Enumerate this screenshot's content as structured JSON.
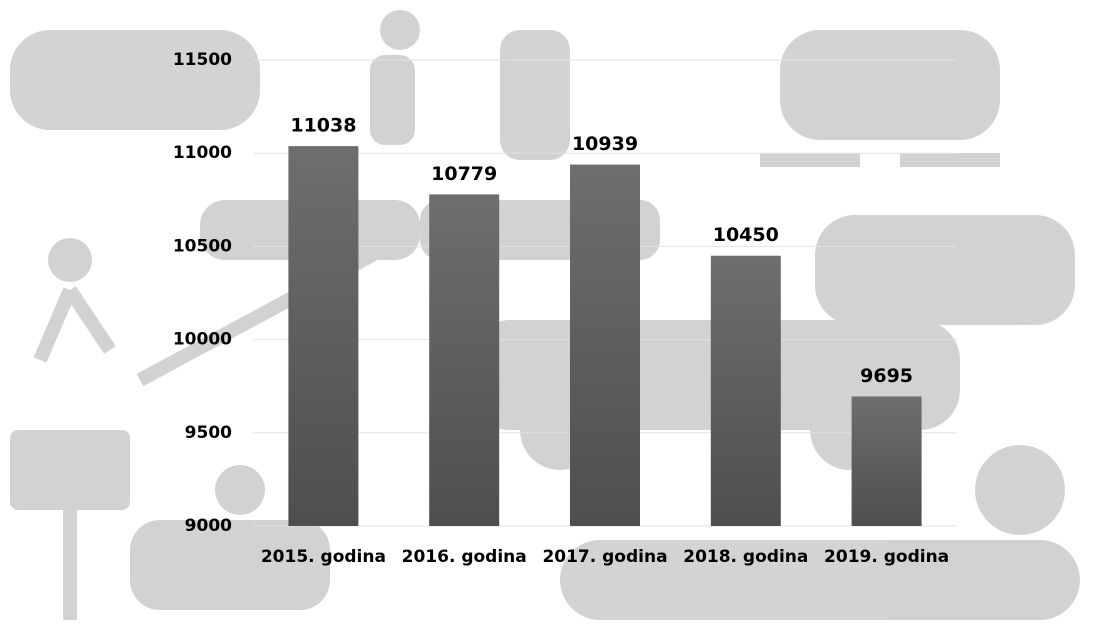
{
  "chart_data": {
    "type": "bar",
    "categories": [
      "2015. godina",
      "2016. godina",
      "2017. godina",
      "2018. godina",
      "2019. godina"
    ],
    "values": [
      11038,
      10779,
      10939,
      10450,
      9695
    ],
    "color": "#5f5f5f",
    "ylim": [
      9000,
      11500
    ],
    "yticks": [
      9000,
      9500,
      10000,
      10500,
      11000,
      11500
    ],
    "grid": true
  }
}
